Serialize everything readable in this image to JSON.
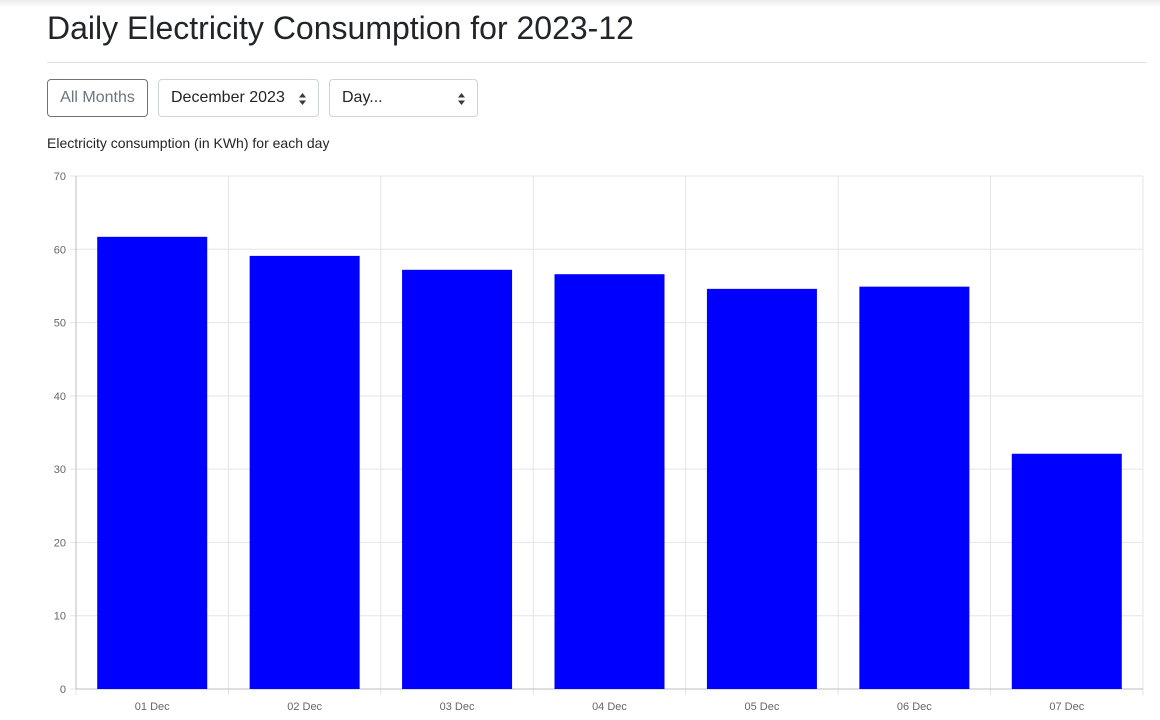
{
  "page": {
    "title": "Daily Electricity Consumption for 2023-12"
  },
  "controls": {
    "all_months_label": "All Months",
    "month_select": {
      "selected": "December 2023"
    },
    "day_select": {
      "selected": "Day..."
    }
  },
  "chart_caption": "Electricity consumption (in KWh) for each day",
  "colors": {
    "bar": "#0000ff",
    "grid": "#e5e5e5",
    "axis": "#bdbdbd",
    "button_border": "#6c757d"
  },
  "icons": {
    "select_caret": "up-down-caret-icon"
  },
  "chart_data": {
    "type": "bar",
    "title": "",
    "xlabel": "",
    "ylabel": "",
    "categories": [
      "01 Dec",
      "02 Dec",
      "03 Dec",
      "04 Dec",
      "05 Dec",
      "06 Dec",
      "07 Dec"
    ],
    "values": [
      61.7,
      59.1,
      57.2,
      56.6,
      54.6,
      54.9,
      32.1
    ],
    "ylim": [
      0,
      70
    ],
    "yticks": [
      0,
      10,
      20,
      30,
      40,
      50,
      60,
      70
    ],
    "grid": true,
    "legend": "none"
  }
}
